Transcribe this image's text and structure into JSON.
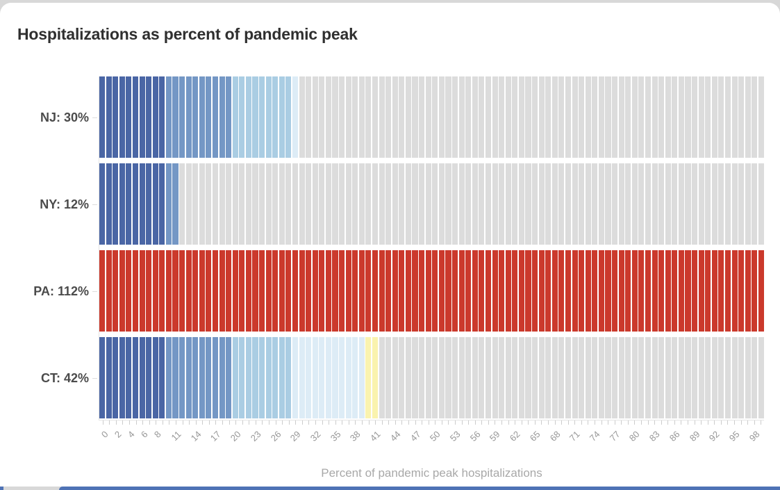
{
  "chart_data": {
    "type": "bar",
    "title": "Hospitalizations as percent of pandemic peak",
    "xlabel": "Percent of pandemic peak hospitalizations",
    "rows": [
      {
        "state": "NJ",
        "label": "NJ: 30%",
        "value": 30
      },
      {
        "state": "NY",
        "label": "NY: 12%",
        "value": 12
      },
      {
        "state": "PA",
        "label": "PA: 112%",
        "value": 112
      },
      {
        "state": "CT",
        "label": "CT: 42%",
        "value": 42
      }
    ],
    "segments_total": 100,
    "x_ticks": [
      0,
      2,
      4,
      6,
      8,
      11,
      14,
      17,
      20,
      23,
      26,
      29,
      32,
      35,
      38,
      41,
      44,
      47,
      50,
      53,
      56,
      59,
      62,
      65,
      68,
      71,
      74,
      77,
      80,
      83,
      86,
      89,
      92,
      95,
      98
    ],
    "colors": {
      "fill_buckets": [
        {
          "upto_index": 9,
          "color": "#4a66a5"
        },
        {
          "upto_index": 19,
          "color": "#7497c5"
        },
        {
          "upto_index": 28,
          "color": "#aacde3"
        },
        {
          "upto_index": 39,
          "color": "#ddecf6"
        },
        {
          "upto_index": 49,
          "color": "#faf3ae"
        }
      ],
      "over_peak": "#cb392c",
      "unfilled": "#dcdcdc"
    }
  },
  "page": {
    "bottom_strip_color": "#4e72b5"
  }
}
